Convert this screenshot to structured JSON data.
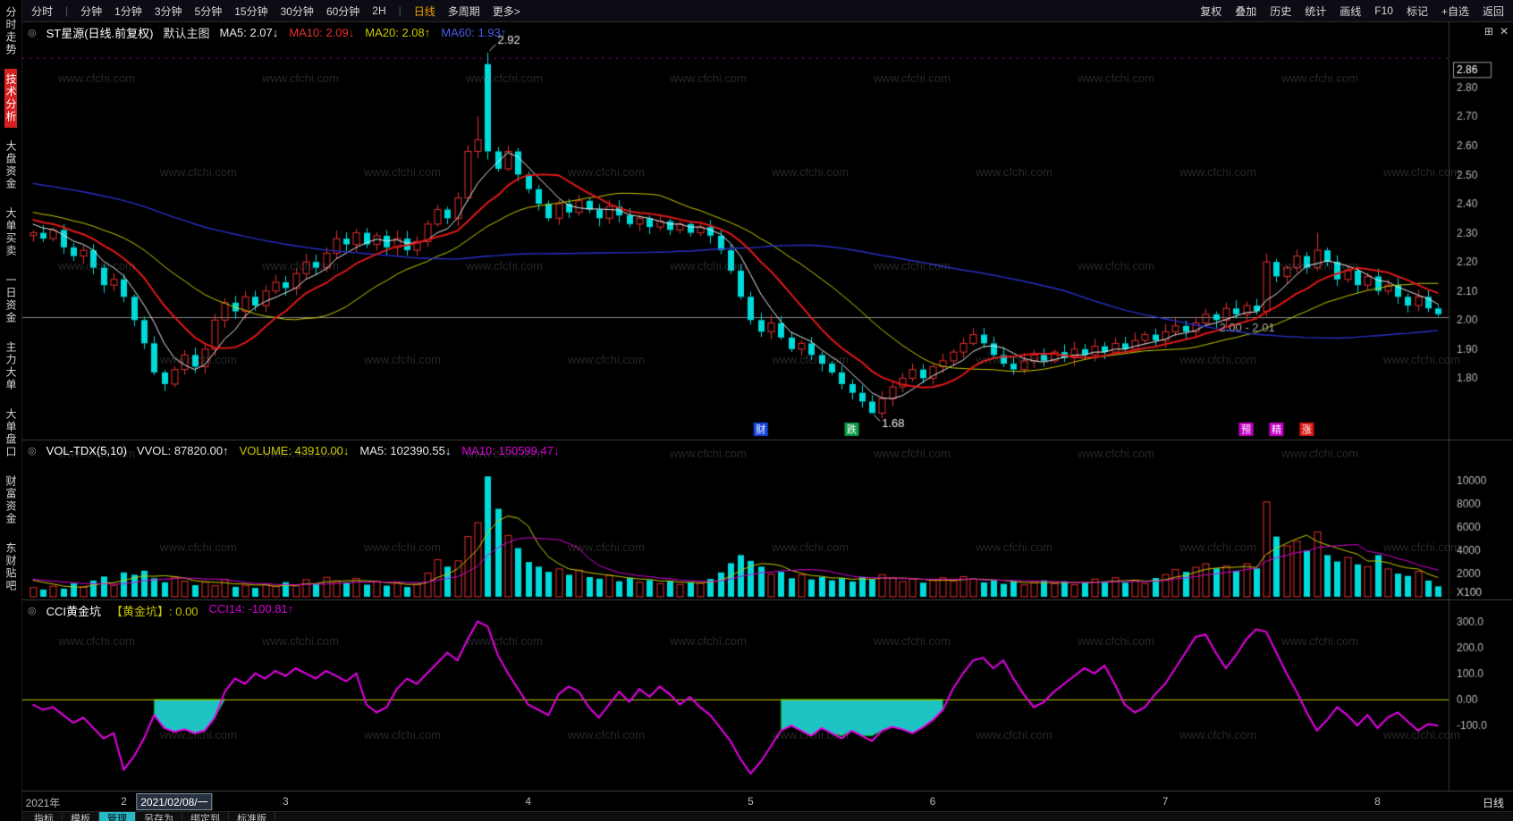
{
  "icons": {
    "panel_toggle": "◎",
    "grid": "⊞",
    "close": "✕"
  },
  "toolbar": {
    "left": [
      "分时",
      "分钟",
      "1分钟",
      "3分钟",
      "5分钟",
      "15分钟",
      "30分钟",
      "60分钟",
      "2H",
      "日线",
      "多周期",
      "更多>"
    ],
    "selected": "日线",
    "sep_after": [
      0,
      8
    ],
    "right": [
      "复权",
      "叠加",
      "历史",
      "统计",
      "画线",
      "F10",
      "标记",
      "+自选",
      "返回"
    ]
  },
  "sidebar": {
    "items": [
      {
        "label": "分时走势",
        "active": false
      },
      {
        "label": "技术分析",
        "active": true
      },
      {
        "label": "大盘资金",
        "active": false
      },
      {
        "label": "大单买卖",
        "active": false
      },
      {
        "label": "一日资金",
        "active": false
      },
      {
        "label": "主力大单",
        "active": false
      },
      {
        "label": "大单盘口",
        "active": false
      },
      {
        "label": "财富资金",
        "active": false
      },
      {
        "label": "东财贴吧",
        "active": false
      }
    ]
  },
  "main_chart": {
    "title": "ST星源(日线.前复权)",
    "subtitle": "默认主图",
    "ma_labels": [
      {
        "text": "MA5: 2.07↓",
        "color": "#e8e8e8"
      },
      {
        "text": "MA10: 2.09↓",
        "color": "#e23030"
      },
      {
        "text": "MA20: 2.08↑",
        "color": "#c8c800"
      },
      {
        "text": "MA60: 1.93↑",
        "color": "#4a5ae8"
      }
    ],
    "axis": [
      "2.86",
      "2.80",
      "2.70",
      "2.60",
      "2.50",
      "2.40",
      "2.30",
      "2.20",
      "2.10",
      "2.00",
      "1.90",
      "1.80"
    ],
    "annotations": {
      "high": {
        "text": "2.92",
        "i": 45,
        "price": 2.92
      },
      "low": {
        "text": "1.68",
        "i": 83,
        "price": 1.68
      },
      "last": {
        "text": "2.00 - 2.01",
        "i": 120,
        "price": 2.01
      }
    },
    "markers": [
      {
        "label": "财",
        "bg": "#1546dd",
        "i": 72
      },
      {
        "label": "跌",
        "bg": "#0a9a46",
        "i": 81
      },
      {
        "label": "预",
        "bg": "#c400c4",
        "i": 120
      },
      {
        "label": "精",
        "bg": "#c400c4",
        "i": 123
      },
      {
        "label": "涨",
        "bg": "#dd1616",
        "i": 126
      }
    ]
  },
  "volume_chart": {
    "title": "VOL-TDX(5,10)",
    "labels": [
      {
        "text": "VVOL: 87820.00↑",
        "color": "#e8e8e8"
      },
      {
        "text": "VOLUME: 43910.00↓",
        "color": "#c8c800"
      },
      {
        "text": "MA5: 102390.55↓",
        "color": "#e8e8e8"
      },
      {
        "text": "MA10: 150599.47↓",
        "color": "#d800d8"
      }
    ],
    "axis": [
      "10000",
      "8000",
      "6000",
      "4000",
      "2000"
    ],
    "unit": "X100"
  },
  "cci_chart": {
    "title": "CCI黄金坑",
    "labels": [
      {
        "text": "【黄金坑】: 0.00",
        "color": "#c8c800"
      },
      {
        "text": "CCI14: -100.81↑",
        "color": "#d800d8"
      }
    ],
    "axis": [
      "300.0",
      "200.0",
      "100.0",
      "0.00",
      "-100.0"
    ]
  },
  "time_axis": {
    "labels": [
      {
        "text": "2021年",
        "i": 1
      },
      {
        "text": "2",
        "i": 9
      },
      {
        "text": "2021/02/08/一",
        "i": 14,
        "boxed": true
      },
      {
        "text": "3",
        "i": 25
      },
      {
        "text": "4",
        "i": 49
      },
      {
        "text": "5",
        "i": 71
      },
      {
        "text": "6",
        "i": 89
      },
      {
        "text": "7",
        "i": 112
      },
      {
        "text": "8",
        "i": 133
      }
    ],
    "right": "日线"
  },
  "statusbar": {
    "items": [
      "指标",
      "模板",
      "管理",
      "另存为",
      "绑定到",
      "标准版"
    ],
    "highlighted": "管理"
  },
  "watermark": "www.cfchi.com",
  "colors": {
    "up": "#e23030",
    "down": "#00dada",
    "ma5": "#e8e8e8",
    "ma10": "#e01818",
    "ma20": "#c8c800",
    "ma60": "#2830c8",
    "vol_ma5": "#c8c800",
    "vol_ma10": "#d800d8",
    "cci_line": "#e800e8",
    "cci_zero": "#c8c800",
    "pit_fill": "#1ec4c4",
    "pit_edge": "#00a000",
    "axis_text": "#b8b8b8",
    "separator": "#3a3a3a",
    "last_line": "#8a8a8a",
    "dotted_line": "#a000a0"
  },
  "chart_data": {
    "type": "candlestick+volume+cci",
    "price_range": [
      1.62,
      2.95
    ],
    "volume_max": 11500,
    "cci_range": [
      -320,
      340
    ],
    "last_price_line": 2.01,
    "dotted_top_line": 2.9,
    "closes": [
      2.3,
      2.28,
      2.31,
      2.25,
      2.22,
      2.24,
      2.18,
      2.12,
      2.14,
      2.08,
      2.0,
      1.92,
      1.82,
      1.78,
      1.83,
      1.88,
      1.84,
      1.9,
      2.0,
      2.06,
      2.03,
      2.08,
      2.05,
      2.1,
      2.13,
      2.11,
      2.16,
      2.2,
      2.18,
      2.23,
      2.28,
      2.26,
      2.3,
      2.26,
      2.29,
      2.25,
      2.28,
      2.24,
      2.27,
      2.33,
      2.38,
      2.35,
      2.42,
      2.58,
      2.62,
      2.58,
      2.52,
      2.58,
      2.5,
      2.45,
      2.4,
      2.35,
      2.4,
      2.37,
      2.41,
      2.38,
      2.35,
      2.39,
      2.36,
      2.33,
      2.35,
      2.32,
      2.34,
      2.31,
      2.33,
      2.3,
      2.32,
      2.29,
      2.24,
      2.17,
      2.08,
      2.0,
      1.96,
      1.99,
      1.94,
      1.9,
      1.92,
      1.88,
      1.85,
      1.82,
      1.78,
      1.75,
      1.72,
      1.68,
      1.73,
      1.77,
      1.8,
      1.83,
      1.8,
      1.84,
      1.86,
      1.89,
      1.92,
      1.95,
      1.92,
      1.88,
      1.85,
      1.83,
      1.86,
      1.88,
      1.86,
      1.89,
      1.87,
      1.9,
      1.88,
      1.91,
      1.89,
      1.92,
      1.9,
      1.93,
      1.95,
      1.93,
      1.96,
      1.98,
      1.96,
      1.99,
      2.02,
      2.0,
      2.04,
      2.02,
      2.05,
      2.03,
      2.2,
      2.15,
      2.18,
      2.22,
      2.18,
      2.24,
      2.2,
      2.14,
      2.17,
      2.12,
      2.15,
      2.1,
      2.12,
      2.08,
      2.05,
      2.08,
      2.04,
      2.02
    ],
    "open_overrides": {
      "45": 2.88
    },
    "high_overrides": {
      "43": 2.6,
      "44": 2.7,
      "45": 2.92,
      "127": 2.3
    },
    "low_overrides": {
      "83": 1.68
    },
    "volumes": [
      800,
      620,
      920,
      700,
      1150,
      820,
      1400,
      1750,
      980,
      2100,
      1900,
      2250,
      1600,
      1250,
      1700,
      1350,
      1000,
      1250,
      950,
      1500,
      860,
      980,
      760,
      1060,
      880,
      1260,
      940,
      1480,
      1120,
      1680,
      1380,
      1220,
      1560,
      1040,
      1340,
      960,
      1160,
      840,
      1060,
      2050,
      3200,
      2600,
      3100,
      5200,
      6400,
      10400,
      7600,
      5300,
      4200,
      3000,
      2600,
      2150,
      2400,
      1900,
      2300,
      1700,
      1560,
      1850,
      1340,
      1650,
      1260,
      1440,
      1140,
      1360,
      1060,
      1240,
      1160,
      1540,
      2100,
      2900,
      3600,
      3100,
      2600,
      1950,
      2150,
      1600,
      1900,
      1500,
      1700,
      1420,
      1620,
      1320,
      1720,
      1520,
      1900,
      1620,
      1300,
      1520,
      1220,
      1420,
      1640,
      1340,
      1740,
      1540,
      1240,
      1440,
      1120,
      1320,
      1020,
      1220,
      1420,
      1120,
      1340,
      1040,
      1240,
      1520,
      1320,
      1640,
      1220,
      1440,
      1140,
      1620,
      1920,
      2350,
      2150,
      2550,
      2850,
      2450,
      2650,
      2250,
      2850,
      2450,
      8200,
      5200,
      4400,
      4800,
      4000,
      5600,
      3600,
      3050,
      3400,
      2800,
      2600,
      3600,
      2400,
      2000,
      1800,
      2200,
      1400,
      900
    ],
    "cci": [
      -20,
      -40,
      -30,
      -60,
      -90,
      -70,
      -110,
      -150,
      -130,
      -270,
      -220,
      -150,
      -60,
      -110,
      -125,
      -115,
      -130,
      -120,
      -70,
      30,
      80,
      60,
      100,
      80,
      110,
      90,
      120,
      100,
      80,
      110,
      90,
      70,
      100,
      -20,
      -50,
      -30,
      40,
      80,
      60,
      100,
      140,
      180,
      150,
      230,
      300,
      280,
      170,
      100,
      40,
      -20,
      -40,
      -60,
      20,
      50,
      30,
      -30,
      -70,
      -20,
      30,
      -10,
      40,
      10,
      50,
      20,
      -20,
      10,
      -30,
      -60,
      -110,
      -160,
      -230,
      -285,
      -240,
      -180,
      -120,
      -100,
      -120,
      -140,
      -110,
      -130,
      -150,
      -120,
      -140,
      -160,
      -120,
      -105,
      -115,
      -130,
      -108,
      -80,
      -40,
      40,
      100,
      150,
      160,
      120,
      150,
      80,
      20,
      -30,
      -10,
      30,
      60,
      90,
      120,
      100,
      130,
      60,
      -20,
      -50,
      -30,
      20,
      60,
      120,
      180,
      240,
      250,
      180,
      120,
      170,
      230,
      270,
      260,
      180,
      100,
      30,
      -50,
      -120,
      -80,
      -30,
      -60,
      -100,
      -60,
      -110,
      -70,
      -50,
      -85,
      -120,
      -95,
      -101
    ],
    "pit_spans": [
      [
        12,
        19
      ],
      [
        74,
        90
      ]
    ]
  }
}
